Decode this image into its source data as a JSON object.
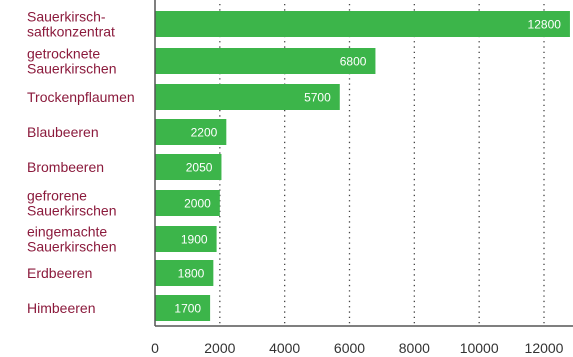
{
  "chart_data": {
    "type": "bar",
    "orientation": "horizontal",
    "categories": [
      [
        "Sauerkirsch-",
        "saftkonzentrat"
      ],
      [
        "getrocknete",
        "Sauerkirschen"
      ],
      [
        "Trockenpflaumen"
      ],
      [
        "Blaubeeren"
      ],
      [
        "Brombeeren"
      ],
      [
        "gefrorene",
        "Sauerkirschen"
      ],
      [
        "eingemachte",
        "Sauerkirschen"
      ],
      [
        "Erdbeeren"
      ],
      [
        "Himbeeren"
      ]
    ],
    "values": [
      12800,
      6800,
      5700,
      2200,
      2050,
      2000,
      1900,
      1800,
      1700
    ],
    "data_labels": [
      "12800",
      "6800",
      "5700",
      "2200",
      "2050",
      "2000",
      "1900",
      "1800",
      "1700"
    ],
    "x_ticks": [
      "0",
      "2000",
      "4000",
      "6000",
      "8000",
      "10000",
      "12000"
    ],
    "x_tick_values": [
      0,
      2000,
      4000,
      6000,
      8000,
      10000,
      12000
    ],
    "xlim": [
      0,
      12800
    ],
    "grid": "vertical dotted",
    "colors": {
      "bar": "#3cb54a",
      "category_label": "#8b1a3c",
      "axis": "#555555",
      "grid": "#444444"
    }
  }
}
